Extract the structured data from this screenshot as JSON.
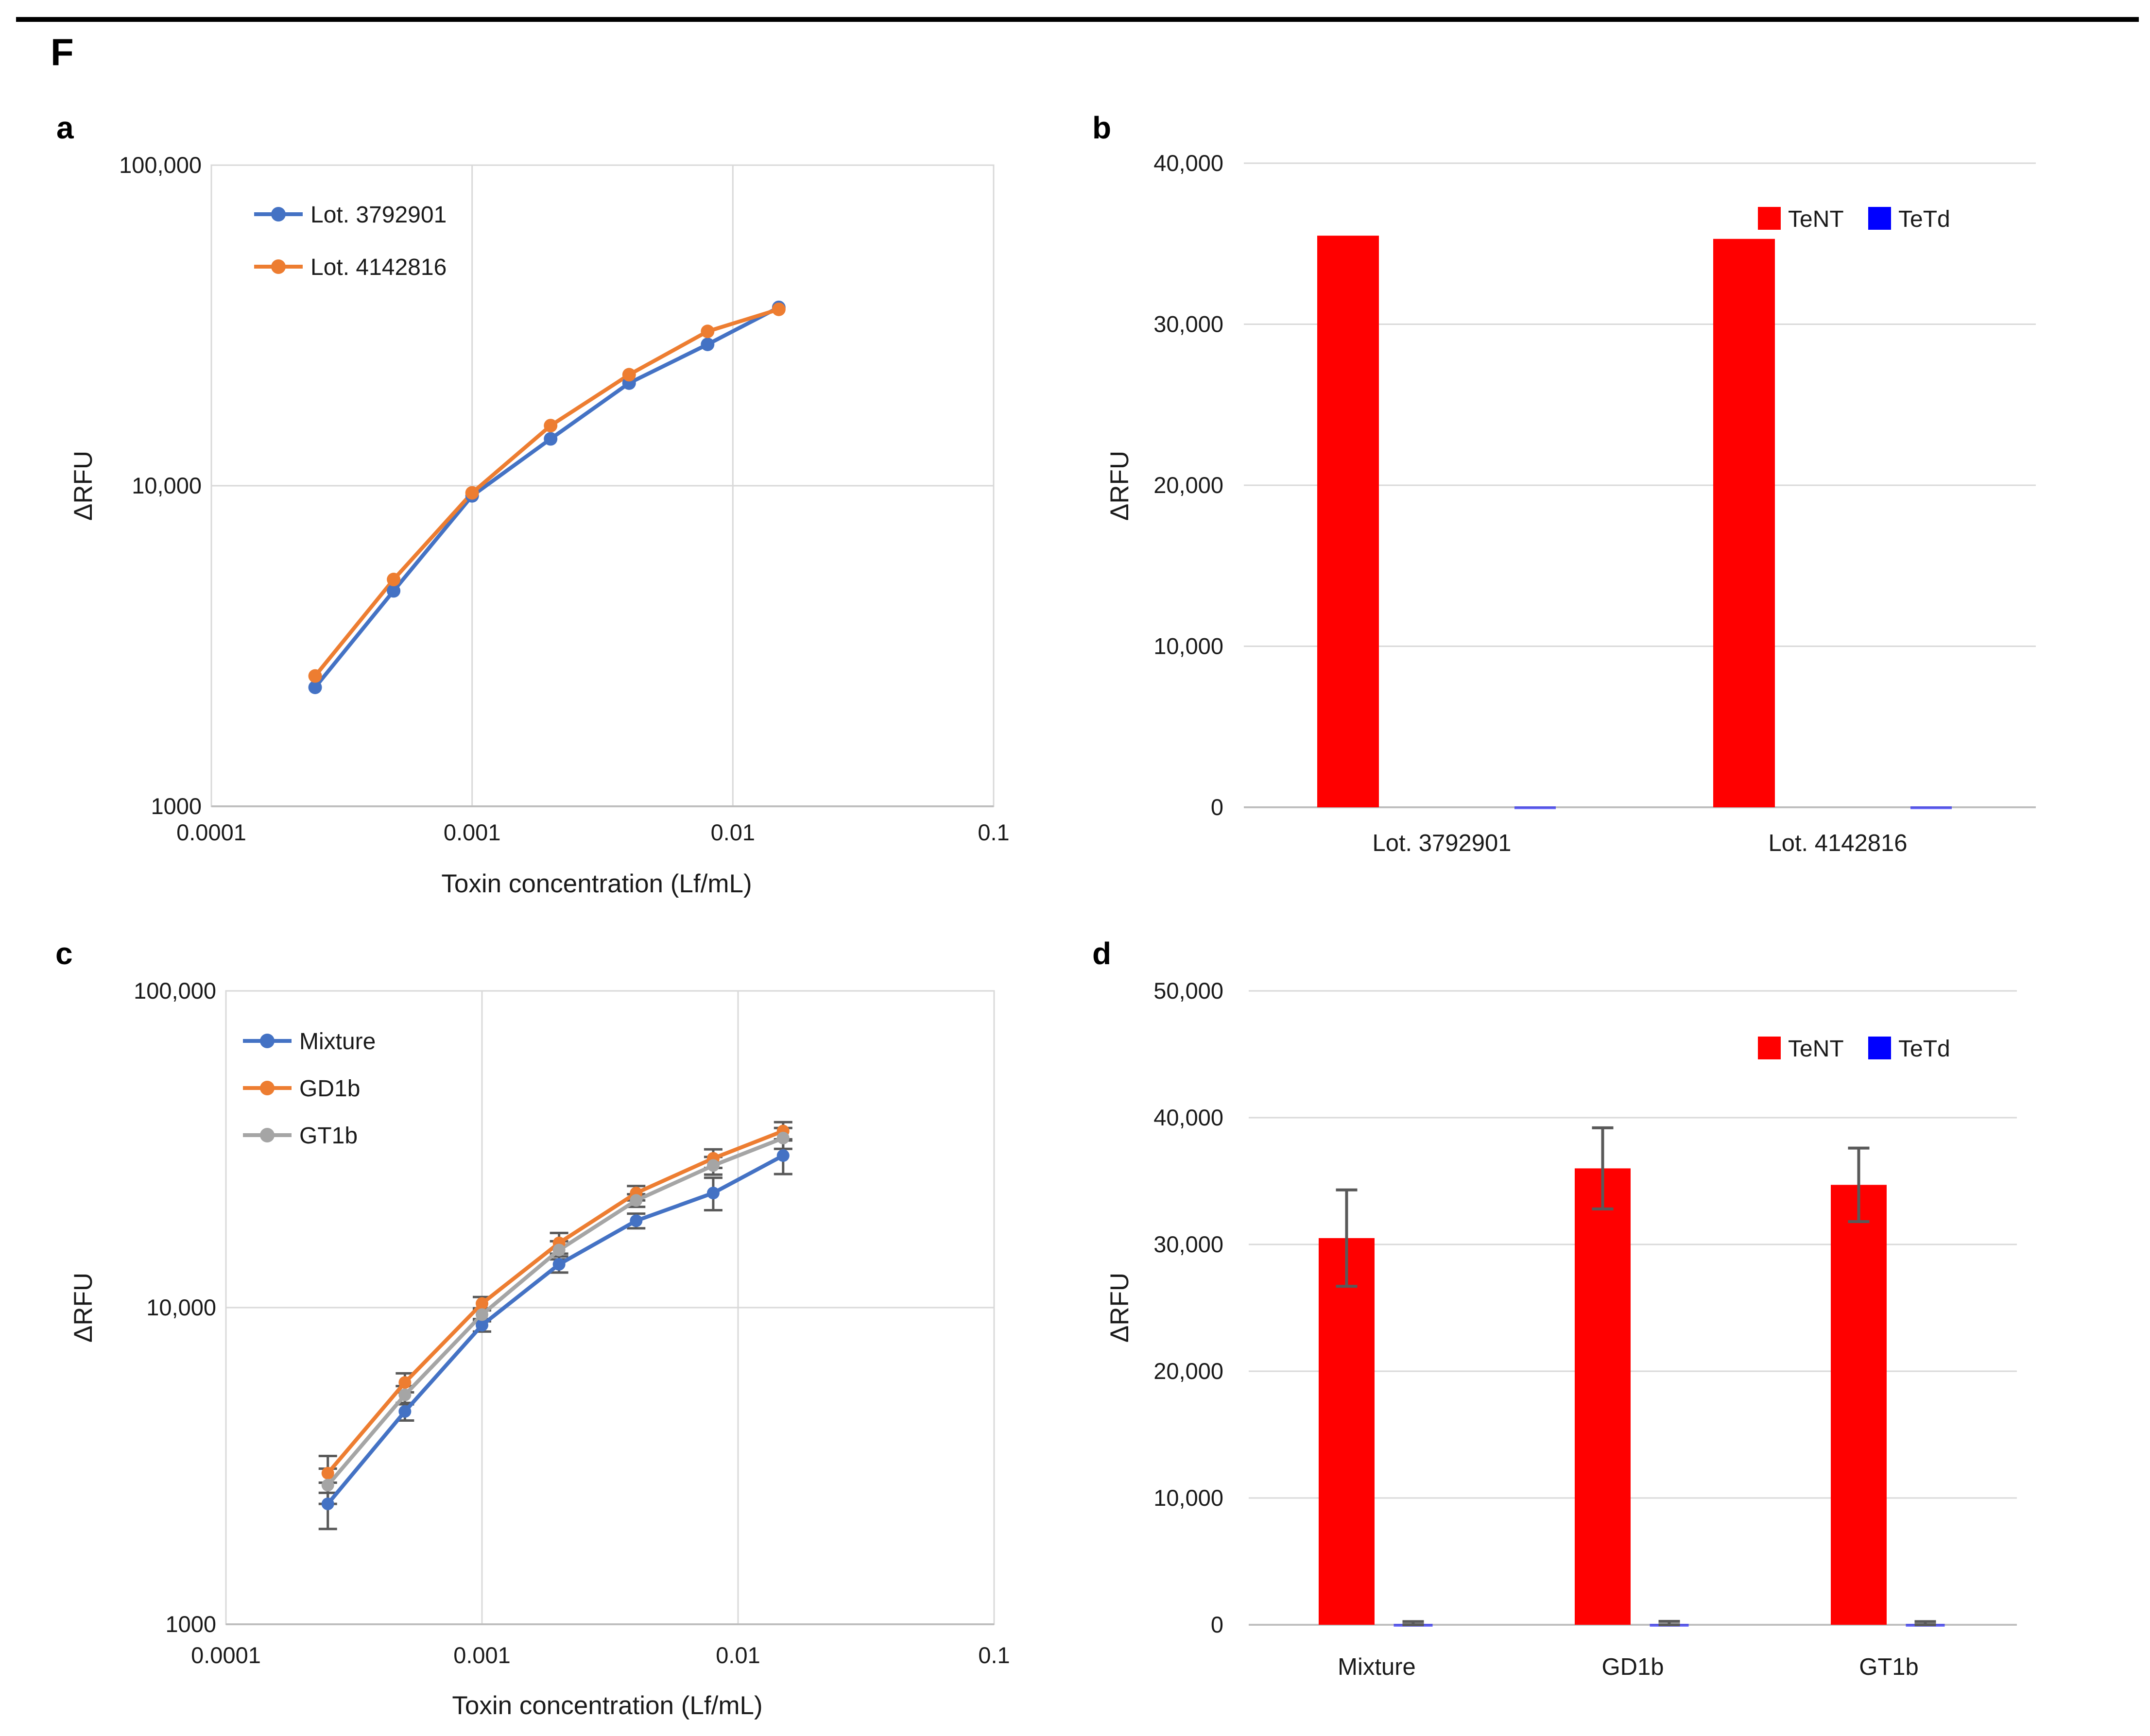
{
  "figure": {
    "label": "F"
  },
  "panel_labels": {
    "a": "a",
    "b": "b",
    "c": "c",
    "d": "d"
  },
  "colors": {
    "series_blue": "#4472C4",
    "series_orange": "#ED7D31",
    "series_gray": "#A5A5A5",
    "tent_red": "#FF0000",
    "tetd_blue": "#0000FF",
    "grid": "#D9D9D9",
    "axis_line": "#BFBFBF",
    "error_bar": "#595959",
    "text": "#1a1a1a"
  },
  "chart_data": [
    {
      "id": "a",
      "type": "line",
      "x_scale": "log",
      "y_scale": "log",
      "xlabel": "Toxin concentration (Lf/mL)",
      "ylabel": "ΔRFU",
      "xlim": [
        0.0001,
        0.1
      ],
      "ylim": [
        1000,
        100000
      ],
      "x_tick_values": [
        0.0001,
        0.001,
        0.01,
        0.1
      ],
      "x_tick_labels": [
        "0.0001",
        "0.001",
        "0.01",
        "0.1"
      ],
      "y_tick_values": [
        1000,
        10000,
        100000
      ],
      "y_tick_labels": [
        "1000",
        "10,000",
        "100,000"
      ],
      "grid": true,
      "legend_position": "top-left",
      "x": [
        0.00025,
        0.0005,
        0.001,
        0.002,
        0.004,
        0.008,
        0.015
      ],
      "series": [
        {
          "name": "Lot. 3792901",
          "color": "#4472C4",
          "values": [
            2350,
            4700,
            9300,
            14000,
            20900,
            27600,
            36000
          ]
        },
        {
          "name": "Lot. 4142816",
          "color": "#ED7D31",
          "values": [
            2550,
            5100,
            9500,
            15400,
            22200,
            30300,
            35500
          ]
        }
      ]
    },
    {
      "id": "b",
      "type": "bar",
      "ylabel": "ΔRFU",
      "ylim": [
        0,
        40000
      ],
      "y_tick_step": 10000,
      "y_tick_labels": [
        "0",
        "10,000",
        "20,000",
        "30,000",
        "40,000"
      ],
      "categories": [
        "Lot. 3792901",
        "Lot. 4142816"
      ],
      "legend_position": "top-right",
      "series": [
        {
          "name": "TeNT",
          "color": "#FF0000",
          "values": [
            35500,
            35300
          ]
        },
        {
          "name": "TeTd",
          "color": "#0000FF",
          "values": [
            0,
            0
          ]
        }
      ]
    },
    {
      "id": "c",
      "type": "line",
      "x_scale": "log",
      "y_scale": "log",
      "xlabel": "Toxin concentration (Lf/mL)",
      "ylabel": "ΔRFU",
      "xlim": [
        0.0001,
        0.1
      ],
      "ylim": [
        1000,
        100000
      ],
      "x_tick_values": [
        0.0001,
        0.001,
        0.01,
        0.1
      ],
      "x_tick_labels": [
        "0.0001",
        "0.001",
        "0.01",
        "0.1"
      ],
      "y_tick_values": [
        1000,
        10000,
        100000
      ],
      "y_tick_labels": [
        "1000",
        "10,000",
        "100,000"
      ],
      "grid": true,
      "legend_position": "top-left",
      "x": [
        0.00025,
        0.0005,
        0.001,
        0.002,
        0.004,
        0.008,
        0.015
      ],
      "series": [
        {
          "name": "Mixture",
          "color": "#4472C4",
          "values": [
            2400,
            4700,
            8800,
            13700,
            18800,
            23000,
            30200
          ],
          "errors": [
            400,
            300,
            400,
            800,
            1000,
            2700,
            3800
          ]
        },
        {
          "name": "GD1b",
          "color": "#ED7D31",
          "values": [
            3000,
            5800,
            10300,
            16000,
            23000,
            29600,
            36100
          ],
          "errors": [
            400,
            400,
            500,
            1200,
            1200,
            2000,
            2400
          ]
        },
        {
          "name": "GT1b",
          "color": "#A5A5A5",
          "values": [
            2750,
            5300,
            9500,
            15200,
            21800,
            28100,
            34300
          ],
          "errors": [
            350,
            350,
            450,
            1000,
            1000,
            1800,
            2600
          ]
        }
      ]
    },
    {
      "id": "d",
      "type": "bar",
      "ylabel": "ΔRFU",
      "ylim": [
        0,
        50000
      ],
      "y_tick_step": 10000,
      "y_tick_labels": [
        "0",
        "10,000",
        "20,000",
        "30,000",
        "40,000",
        "50,000"
      ],
      "categories": [
        "Mixture",
        "GD1b",
        "GT1b"
      ],
      "legend_position": "top-right",
      "series": [
        {
          "name": "TeNT",
          "color": "#FF0000",
          "values": [
            30500,
            36000,
            34700
          ],
          "errors": [
            3800,
            3200,
            2900
          ]
        },
        {
          "name": "TeTd",
          "color": "#0000FF",
          "values": [
            120,
            130,
            120
          ],
          "errors": [
            130,
            140,
            130
          ]
        }
      ]
    }
  ]
}
